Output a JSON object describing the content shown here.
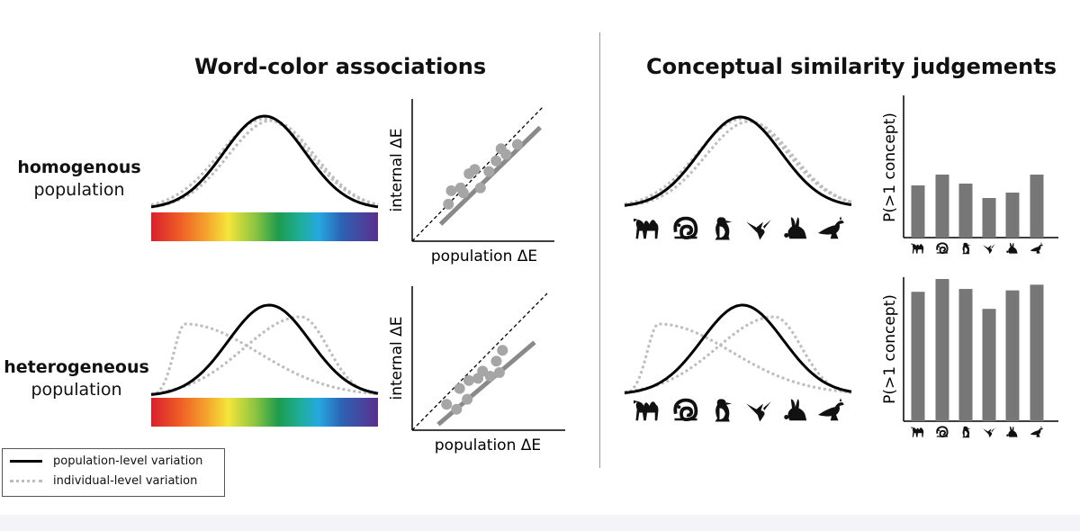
{
  "titles": {
    "left": "Word-color associations",
    "right": "Conceptual similarity judgements"
  },
  "rows": {
    "homogenous": {
      "bold": "homogenous",
      "rest": "population"
    },
    "heterogeneous": {
      "bold": "heterogeneous",
      "rest": "population"
    }
  },
  "scatter": {
    "xlabel": "population ΔE",
    "ylabel": "internal ΔE"
  },
  "bar": {
    "ylabel": "P(>1 concept)"
  },
  "legend": {
    "population": "population-level variation",
    "individual": "individual-level variation"
  },
  "animals": [
    "camel",
    "chameleon",
    "penguin",
    "hummingbird",
    "rabbit",
    "kangaroo"
  ],
  "colors": {
    "population_curve": "#000000",
    "individual_curve": "#bdbdbd",
    "points": "#a6a6a6",
    "fit_line": "#8a8a8a",
    "bars": "#777777"
  },
  "chart_data": [
    {
      "type": "scatter",
      "id": "homogenous-word-color",
      "xlabel": "population ΔE",
      "ylabel": "internal ΔE",
      "x": [
        0.51,
        0.55,
        0.68,
        0.72,
        0.8,
        0.88,
        0.96,
        1.08,
        1.18,
        1.25,
        1.32,
        1.48
      ],
      "y": [
        0.52,
        0.71,
        0.75,
        0.68,
        0.95,
        1.01,
        0.75,
        0.98,
        1.13,
        1.3,
        1.22,
        1.36
      ],
      "fit_line": [
        [
          0.4,
          0.24
        ],
        [
          1.8,
          1.6
        ]
      ],
      "identity_line": true,
      "xlim": [
        0,
        2.0
      ],
      "ylim": [
        0,
        2.0
      ]
    },
    {
      "type": "scatter",
      "id": "heterogeneous-word-color",
      "xlabel": "population ΔE",
      "ylabel": "internal ΔE",
      "x": [
        0.45,
        0.58,
        0.62,
        0.72,
        0.74,
        0.86,
        0.92,
        1.02,
        1.1,
        1.14,
        1.18
      ],
      "y": [
        0.36,
        0.29,
        0.58,
        0.43,
        0.69,
        0.72,
        0.82,
        0.75,
        0.96,
        0.8,
        1.11
      ],
      "fit_line": [
        [
          0.34,
          0.08
        ],
        [
          1.6,
          1.22
        ]
      ],
      "identity_line": true,
      "xlim": [
        0,
        2.0
      ],
      "ylim": [
        0,
        2.0
      ]
    },
    {
      "type": "bar",
      "id": "homogenous-conceptual",
      "categories": [
        "camel",
        "chameleon",
        "penguin",
        "hummingbird",
        "rabbit",
        "kangaroo"
      ],
      "values": [
        0.29,
        0.35,
        0.3,
        0.22,
        0.25,
        0.35
      ],
      "ylabel": "P(>1 concept)",
      "ylim": [
        0,
        1
      ]
    },
    {
      "type": "bar",
      "id": "heterogeneous-conceptual",
      "categories": [
        "camel",
        "chameleon",
        "penguin",
        "hummingbird",
        "rabbit",
        "kangaroo"
      ],
      "values": [
        0.91,
        1.0,
        0.93,
        0.79,
        0.92,
        0.96
      ],
      "ylabel": "P(>1 concept)",
      "ylim": [
        0,
        1
      ]
    }
  ]
}
